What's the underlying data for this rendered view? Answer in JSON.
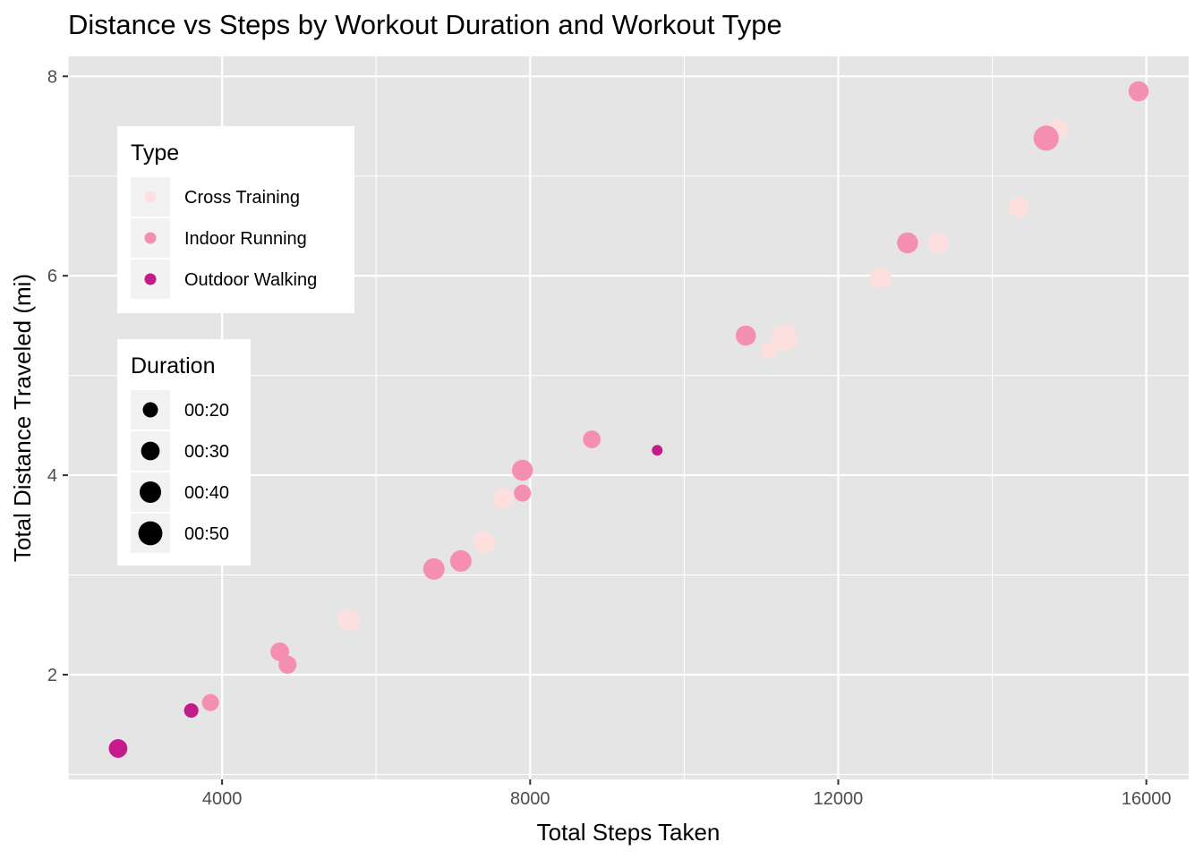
{
  "chart_data": {
    "type": "scatter",
    "title": "Distance vs Steps by Workout Duration and Workout Type",
    "xlabel": "Total Steps Taken",
    "ylabel": "Total Distance Traveled (mi)",
    "xlim": [
      2000,
      16550
    ],
    "ylim": [
      0.95,
      8.2
    ],
    "x_ticks": [
      4000,
      8000,
      12000,
      16000
    ],
    "x_tick_labels": [
      "4000",
      "8000",
      "12000",
      "16000"
    ],
    "y_ticks": [
      2,
      4,
      6,
      8
    ],
    "y_tick_labels": [
      "2",
      "4",
      "6",
      "8"
    ],
    "grid": true,
    "panel_background": "#e5e5e5",
    "grid_color": "#ffffff",
    "legend_placement": "inside-left",
    "legend_color": {
      "title": "Type",
      "entries": [
        {
          "label": "Cross Training",
          "color": "#fde0dd"
        },
        {
          "label": "Indoor Running",
          "color": "#f58fb1"
        },
        {
          "label": "Outdoor Walking",
          "color": "#c51b8a"
        }
      ]
    },
    "legend_size": {
      "title": "Duration",
      "entries": [
        {
          "label": "00:20",
          "minutes": 20
        },
        {
          "label": "00:30",
          "minutes": 30
        },
        {
          "label": "00:40",
          "minutes": 40
        },
        {
          "label": "00:50",
          "minutes": 50
        }
      ]
    },
    "series": [
      {
        "name": "Cross Training",
        "color": "#fde0dd",
        "points": [
          {
            "x": 5650,
            "y": 2.55,
            "duration": 42
          },
          {
            "x": 7400,
            "y": 3.33,
            "duration": 42
          },
          {
            "x": 7650,
            "y": 3.77,
            "duration": 35
          },
          {
            "x": 11100,
            "y": 5.25,
            "duration": 25
          },
          {
            "x": 11300,
            "y": 5.38,
            "duration": 55
          },
          {
            "x": 12550,
            "y": 5.98,
            "duration": 38
          },
          {
            "x": 13300,
            "y": 6.33,
            "duration": 38
          },
          {
            "x": 14350,
            "y": 6.69,
            "duration": 38
          },
          {
            "x": 14850,
            "y": 7.47,
            "duration": 35
          }
        ]
      },
      {
        "name": "Indoor Running",
        "color": "#f58fb1",
        "points": [
          {
            "x": 3850,
            "y": 1.72,
            "duration": 25
          },
          {
            "x": 4750,
            "y": 2.23,
            "duration": 30
          },
          {
            "x": 4850,
            "y": 2.1,
            "duration": 28
          },
          {
            "x": 6750,
            "y": 3.06,
            "duration": 40
          },
          {
            "x": 7100,
            "y": 3.14,
            "duration": 40
          },
          {
            "x": 7900,
            "y": 3.82,
            "duration": 25
          },
          {
            "x": 7900,
            "y": 4.05,
            "duration": 38
          },
          {
            "x": 8800,
            "y": 4.36,
            "duration": 27
          },
          {
            "x": 10800,
            "y": 5.4,
            "duration": 35
          },
          {
            "x": 12900,
            "y": 6.33,
            "duration": 38
          },
          {
            "x": 14700,
            "y": 7.38,
            "duration": 55
          },
          {
            "x": 15900,
            "y": 7.85,
            "duration": 35
          }
        ]
      },
      {
        "name": "Outdoor Walking",
        "color": "#c51b8a",
        "points": [
          {
            "x": 2650,
            "y": 1.26,
            "duration": 30
          },
          {
            "x": 3600,
            "y": 1.64,
            "duration": 18
          },
          {
            "x": 9650,
            "y": 4.25,
            "duration": 10
          }
        ]
      }
    ]
  }
}
